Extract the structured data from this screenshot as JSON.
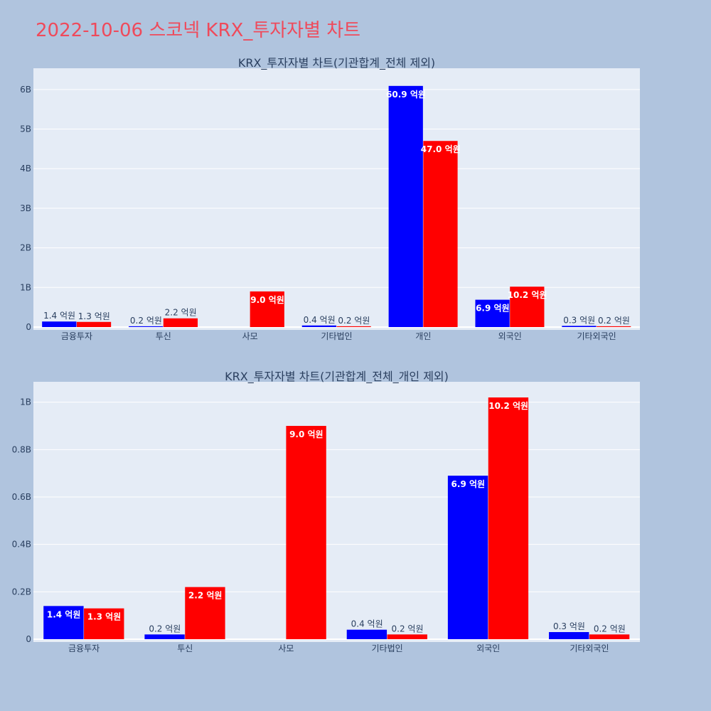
{
  "page": {
    "title": "2022-10-06 스코넥 KRX_투자자별 차트"
  },
  "colors": {
    "background": "#b0c4de",
    "plot_bg": "#e5ecf6",
    "title": "#ef4a5b",
    "series_a": "#0000ff",
    "series_b": "#ff0000"
  },
  "chart_data": [
    {
      "type": "bar",
      "title": "KRX_투자자별 차트(기관합계_전체 제외)",
      "categories": [
        "금융투자",
        "투신",
        "사모",
        "기타법인",
        "개인",
        "외국인",
        "기타외국인"
      ],
      "ylim": [
        0,
        6.5
      ],
      "yticks": [
        0,
        1,
        2,
        3,
        4,
        5,
        6
      ],
      "ytick_labels": [
        "0",
        "1B",
        "2B",
        "3B",
        "4B",
        "5B",
        "6B"
      ],
      "grid": true,
      "series": [
        {
          "color": "#0000ff",
          "values": [
            0.14,
            0.02,
            0.0,
            0.04,
            6.09,
            0.69,
            0.03
          ],
          "labels": [
            "1.4 억원",
            "0.2 억원",
            "",
            "0.4 억원",
            "60.9 억원",
            "6.9 억원",
            "0.3 억원"
          ]
        },
        {
          "color": "#ff0000",
          "values": [
            0.13,
            0.22,
            0.9,
            0.02,
            4.7,
            1.02,
            0.02
          ],
          "labels": [
            "1.3 억원",
            "2.2 억원",
            "9.0 억원",
            "0.2 억원",
            "47.0 억원",
            "10.2 억원",
            "0.2 억원"
          ]
        }
      ]
    },
    {
      "type": "bar",
      "title": "KRX_투자자별 차트(기관합계_전체_개인 제외)",
      "categories": [
        "금융투자",
        "투신",
        "사모",
        "기타법인",
        "외국인",
        "기타외국인"
      ],
      "ylim": [
        0,
        1.08
      ],
      "yticks": [
        0,
        0.2,
        0.4,
        0.6,
        0.8,
        1.0
      ],
      "ytick_labels": [
        "0",
        "0.2B",
        "0.4B",
        "0.6B",
        "0.8B",
        "1B"
      ],
      "grid": true,
      "series": [
        {
          "color": "#0000ff",
          "values": [
            0.14,
            0.02,
            0.0,
            0.04,
            0.69,
            0.03
          ],
          "labels": [
            "1.4 억원",
            "0.2 억원",
            "",
            "0.4 억원",
            "6.9 억원",
            "0.3 억원"
          ]
        },
        {
          "color": "#ff0000",
          "values": [
            0.13,
            0.22,
            0.9,
            0.02,
            1.02,
            0.02
          ],
          "labels": [
            "1.3 억원",
            "2.2 억원",
            "9.0 억원",
            "0.2 억원",
            "10.2 억원",
            "0.2 억원"
          ]
        }
      ]
    }
  ]
}
